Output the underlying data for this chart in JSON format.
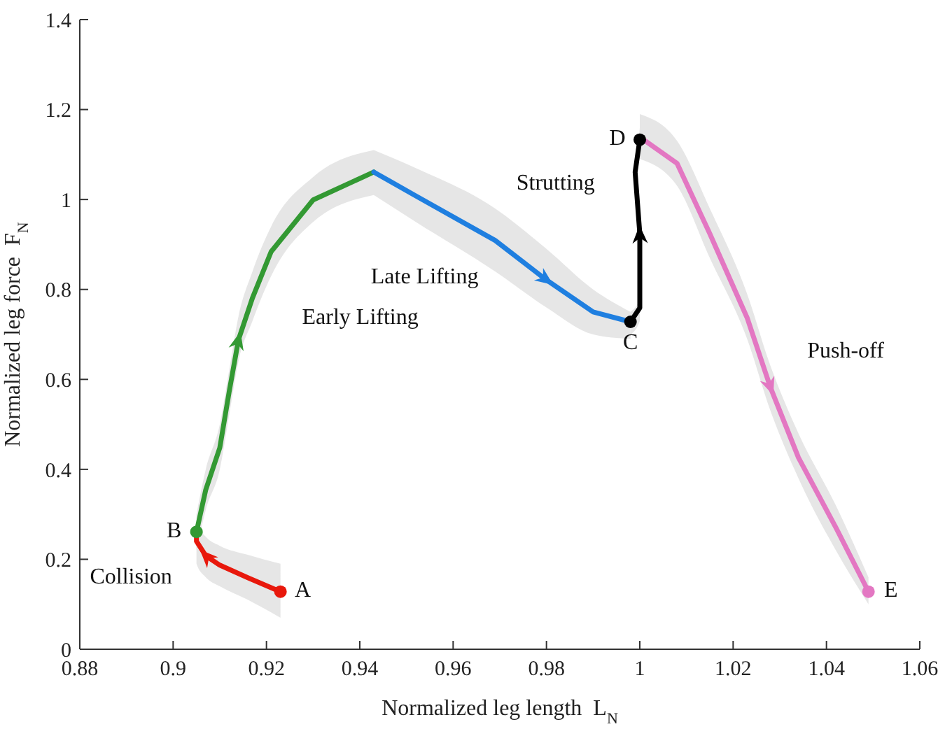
{
  "chart_data": {
    "type": "line",
    "xlabel": "Normalized leg length  L$_{N}$",
    "ylabel": "Normalized leg force  F$_{N}$",
    "xlim": [
      0.88,
      1.06
    ],
    "xticks": [
      0.88,
      0.9,
      0.92,
      0.94,
      0.96,
      0.98,
      1,
      1.02,
      1.04,
      1.06
    ],
    "ylim": [
      0,
      1.4
    ],
    "yticks": [
      0,
      0.2,
      0.4,
      0.6,
      0.8,
      1,
      1.2,
      1.4
    ],
    "grid": false,
    "legend": false,
    "series": [
      {
        "color": "#e8180c",
        "x": [
          0.923,
          0.916,
          0.91,
          0.907,
          0.905,
          0.905
        ],
        "values": [
          0.128,
          0.159,
          0.187,
          0.208,
          0.24,
          0.261
        ],
        "lower": [
          0.07,
          0.11,
          0.14,
          0.16,
          0.19,
          0.22
        ],
        "upper": [
          0.19,
          0.21,
          0.23,
          0.25,
          0.28,
          0.3
        ]
      },
      {
        "color": "#339933",
        "x": [
          0.905,
          0.907,
          0.91,
          0.912,
          0.914,
          0.917,
          0.921,
          0.93,
          0.943
        ],
        "values": [
          0.261,
          0.355,
          0.448,
          0.572,
          0.688,
          0.781,
          0.884,
          0.999,
          1.061
        ],
        "lower": [
          0.22,
          0.31,
          0.4,
          0.52,
          0.64,
          0.73,
          0.83,
          0.95,
          1.01
        ],
        "upper": [
          0.3,
          0.4,
          0.5,
          0.62,
          0.74,
          0.84,
          0.94,
          1.05,
          1.11
        ]
      },
      {
        "color": "#1f7fe0",
        "x": [
          0.943,
          0.952,
          0.969,
          0.98,
          0.99,
          0.998
        ],
        "values": [
          1.061,
          1.008,
          0.909,
          0.821,
          0.75,
          0.728
        ],
        "lower": [
          1.01,
          0.95,
          0.84,
          0.76,
          0.7,
          0.69
        ],
        "upper": [
          1.11,
          1.07,
          0.98,
          0.89,
          0.8,
          0.75
        ]
      },
      {
        "color": "#000000",
        "x": [
          0.998,
          1.0,
          1.0,
          0.999,
          1.0
        ],
        "values": [
          0.728,
          0.759,
          0.924,
          1.061,
          1.133
        ],
        "lower": [
          0.7,
          0.73,
          0.9,
          1.04,
          1.11
        ],
        "upper": [
          0.75,
          0.78,
          0.95,
          1.08,
          1.16
        ]
      },
      {
        "color": "#e377c2",
        "x": [
          1.0,
          1.008,
          1.015,
          1.023,
          1.028,
          1.034,
          1.042,
          1.049
        ],
        "values": [
          1.139,
          1.08,
          0.924,
          0.737,
          0.582,
          0.426,
          0.271,
          0.128
        ],
        "lower": [
          1.09,
          1.03,
          0.87,
          0.69,
          0.53,
          0.38,
          0.22,
          0.1
        ],
        "upper": [
          1.19,
          1.13,
          0.98,
          0.79,
          0.63,
          0.48,
          0.32,
          0.16
        ]
      }
    ],
    "annotations": [
      {
        "text": "A",
        "x": 0.923,
        "y": 0.128
      },
      {
        "text": "B",
        "x": 0.905,
        "y": 0.261
      },
      {
        "text": "C",
        "x": 0.998,
        "y": 0.728
      },
      {
        "text": "D",
        "x": 1.0,
        "y": 1.133
      },
      {
        "text": "E",
        "x": 1.049,
        "y": 0.128
      },
      "Collision",
      "Early Lifting",
      "Late Lifting",
      "Strutting",
      "Push-off"
    ]
  }
}
